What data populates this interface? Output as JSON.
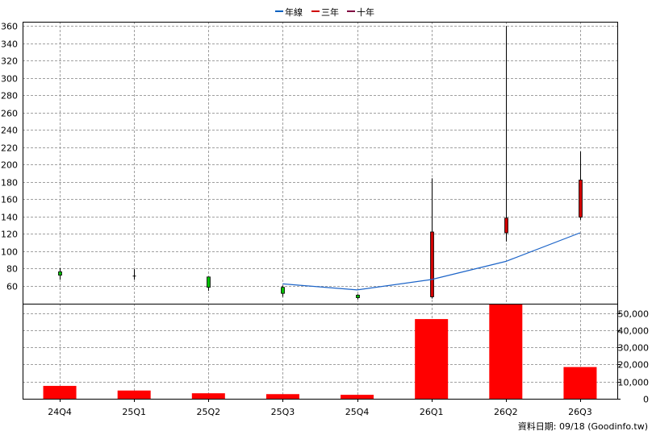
{
  "chart_data": {
    "type": "candlestick+bar+line",
    "legend": {
      "placement": "top-center",
      "items": [
        {
          "label": "年線",
          "color": "#0060c0"
        },
        {
          "label": "三年",
          "color": "#d00000"
        },
        {
          "label": "十年",
          "color": "#800040"
        }
      ]
    },
    "categories": [
      "24Q4",
      "25Q1",
      "25Q2",
      "25Q3",
      "25Q4",
      "26Q1",
      "26Q2",
      "26Q3"
    ],
    "price": {
      "ylim": [
        40,
        365
      ],
      "ticks": [
        "360",
        "340",
        "320",
        "300",
        "280",
        "260",
        "240",
        "220",
        "200",
        "180",
        "160",
        "140",
        "120",
        "100",
        "80",
        "60"
      ],
      "tick_values": [
        360,
        340,
        320,
        300,
        280,
        260,
        240,
        220,
        200,
        180,
        160,
        140,
        120,
        100,
        80,
        60
      ],
      "candles": [
        {
          "open": 72,
          "close": 76,
          "high": 80,
          "low": 67,
          "color": "#00c000"
        },
        {
          "open": 71,
          "close": 71,
          "high": 79,
          "low": 67,
          "color": "#000000"
        },
        {
          "open": 58,
          "close": 70,
          "high": 70,
          "low": 54,
          "color": "#00c000"
        },
        {
          "open": 51,
          "close": 58,
          "high": 60,
          "low": 47,
          "color": "#00c000"
        },
        {
          "open": 46,
          "close": 49,
          "high": 50,
          "low": 44,
          "color": "#00c000"
        },
        {
          "open": 47,
          "close": 122,
          "high": 184,
          "low": 45,
          "color": "#d00000"
        },
        {
          "open": 121,
          "close": 138,
          "high": 360,
          "low": 111,
          "color": "#d00000"
        },
        {
          "open": 139,
          "close": 182,
          "high": 215,
          "low": 136,
          "color": "#d00000"
        }
      ],
      "year_line": {
        "name": "年線",
        "color": "#1c64c8",
        "start_index": 3,
        "values": [
          62,
          55,
          67,
          88,
          121
        ]
      }
    },
    "volume": {
      "ylim": [
        0,
        55000
      ],
      "ticks": [
        "50,000",
        "40,000",
        "30,000",
        "20,000",
        "10,000",
        "0"
      ],
      "tick_values": [
        50000,
        40000,
        30000,
        20000,
        10000,
        0
      ],
      "values": [
        7500,
        4800,
        3200,
        2700,
        2300,
        46500,
        55000,
        18500
      ],
      "color": "#ff0000"
    },
    "footer": "資料日期: 09/18  (Goodinfo.tw)"
  }
}
